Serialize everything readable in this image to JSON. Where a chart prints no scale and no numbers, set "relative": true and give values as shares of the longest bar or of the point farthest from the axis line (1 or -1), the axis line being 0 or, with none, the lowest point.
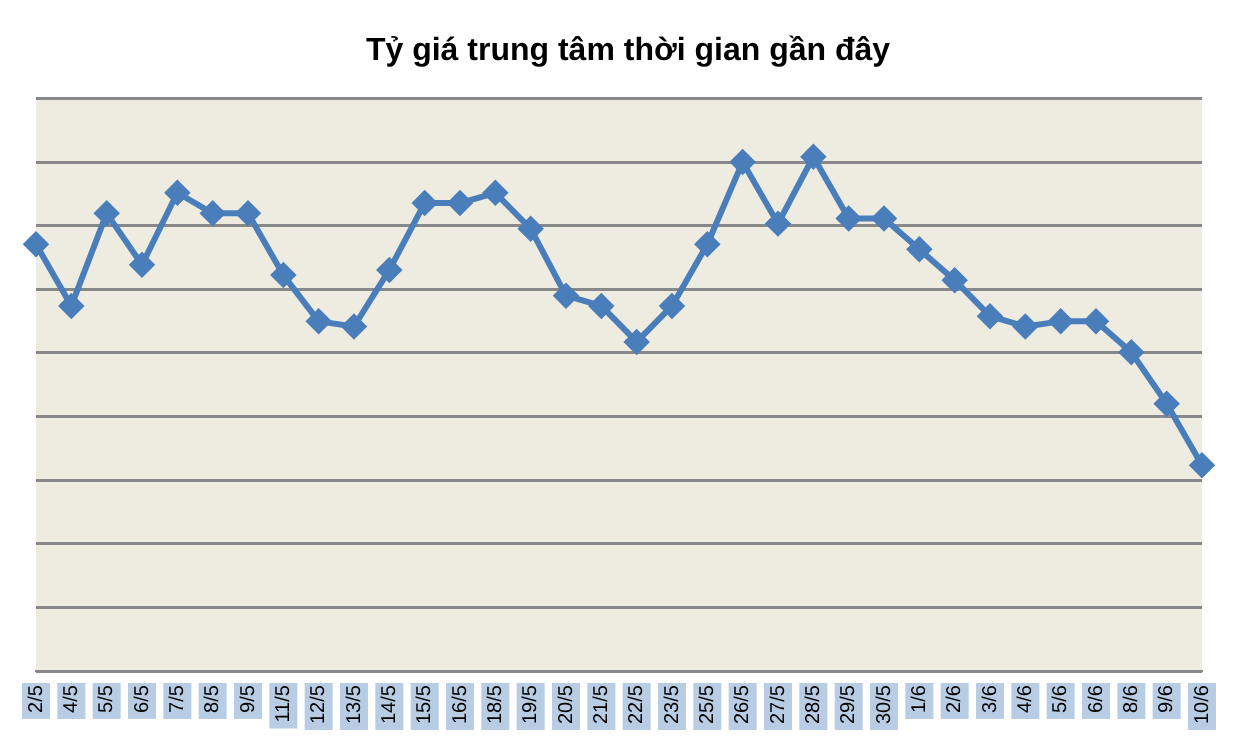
{
  "chart_data": {
    "type": "line",
    "title": "Tỷ giá trung tâm thời gian gần đây",
    "relative": true,
    "grid": "y",
    "legend": false,
    "marker": "diamond",
    "line_style": "solid",
    "categories": [
      "2/5",
      "4/5",
      "5/5",
      "6/5",
      "7/5",
      "8/5",
      "9/5",
      "11/5",
      "12/5",
      "13/5",
      "14/5",
      "15/5",
      "16/5",
      "18/5",
      "19/5",
      "20/5",
      "21/5",
      "22/5",
      "23/5",
      "25/5",
      "26/5",
      "27/5",
      "28/5",
      "29/5",
      "30/5",
      "1/6",
      "2/6",
      "3/6",
      "4/6",
      "5/6",
      "6/6",
      "8/6",
      "9/6",
      "10/6"
    ],
    "series": [
      {
        "color": "#4a7ebb",
        "values": [
          0.83,
          0.71,
          0.89,
          0.79,
          0.93,
          0.89,
          0.89,
          0.77,
          0.68,
          0.67,
          0.78,
          0.91,
          0.91,
          0.93,
          0.86,
          0.73,
          0.71,
          0.64,
          0.71,
          0.83,
          0.99,
          0.87,
          1,
          0.88,
          0.88,
          0.82,
          0.76,
          0.69,
          0.67,
          0.68,
          0.68,
          0.62,
          0.52,
          0.4
        ]
      }
    ]
  }
}
